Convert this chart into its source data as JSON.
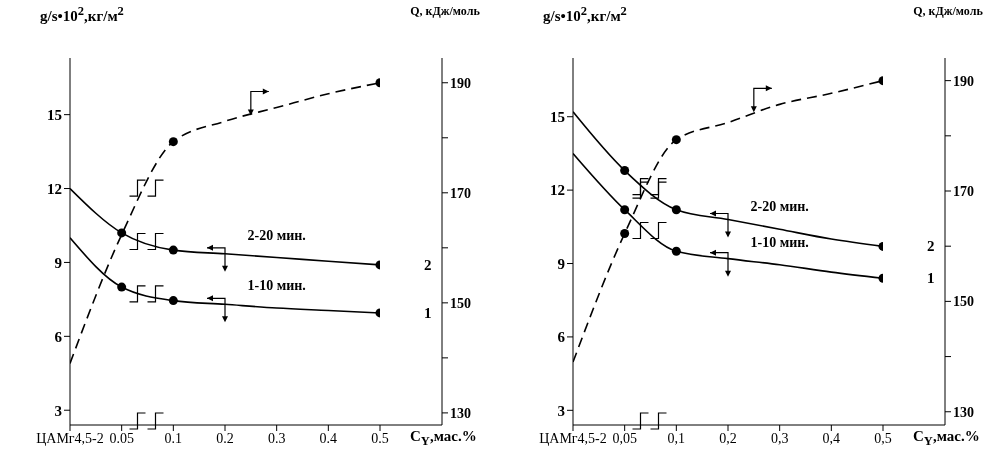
{
  "chart_data": [
    {
      "type": "line",
      "ylabel": "g/s•10$^{2}$,кг/м$^{2}$",
      "y2label": "Q, кДж/моль",
      "xlabel": "C$_{Y}$,мас.%",
      "categories": [
        "ЦАМг4,5-2",
        "0.05",
        "0.1",
        "0.2",
        "0.3",
        "0.4",
        "0.5"
      ],
      "ylim": [
        2.4,
        17.3
      ],
      "yticks": [
        3,
        6,
        9,
        12,
        15
      ],
      "y2lim": [
        127.8,
        194.5
      ],
      "y2ticks": [
        130,
        {
          "value": 140,
          "label": null
        },
        150,
        {
          "value": 160,
          "label": null
        },
        170,
        {
          "value": 180,
          "label": null
        },
        190
      ],
      "grid": false,
      "marker": "none",
      "series": [
        {
          "name": "2",
          "color": "#000000",
          "values": [
            12,
            10.2,
            9.5,
            9.35,
            9.2,
            9.05,
            8.9
          ],
          "line_style": "solid"
        },
        {
          "name": "1",
          "color": "#000000",
          "values": [
            10,
            8,
            7.45,
            7.3,
            7.15,
            7.05,
            6.95
          ],
          "line_style": "solid"
        },
        {
          "color": "#000000",
          "values": [
            139,
            162.4,
            179.3,
            183,
            185.5,
            188,
            190
          ],
          "line_style": "dashed",
          "axis": "y2"
        },
        {
          "type": "scatter",
          "color": "#000000",
          "marker": "circle",
          "x": [
            "0.05",
            "0.1",
            "0.5"
          ],
          "values": [
            10.2,
            9.5,
            8.9
          ]
        },
        {
          "type": "scatter",
          "color": "#000000",
          "marker": "circle",
          "x": [
            "0.05",
            "0.1",
            "0.5"
          ],
          "values": [
            8,
            7.45,
            6.95
          ]
        },
        {
          "type": "scatter",
          "color": "#000000",
          "marker": "circle",
          "axis": "y2",
          "x": [
            "0.1",
            "0.5"
          ],
          "values": [
            179.3,
            190
          ]
        }
      ],
      "annotations": [
        "2-20 мин.",
        "1-10 мин."
      ]
    },
    {
      "type": "line",
      "ylabel": "g/s•10$^{2}$,кг/м$^{2}$",
      "y2label": "Q, кДж/моль",
      "xlabel": "C$_{Y}$,мас.%",
      "categories": [
        "ЦАМг4,5-2",
        "0,05",
        "0,1",
        "0,2",
        "0,3",
        "0,4",
        "0,5"
      ],
      "ylim": [
        2.4,
        17.4
      ],
      "yticks": [
        3,
        6,
        9,
        12,
        15
      ],
      "y2lim": [
        127.6,
        194.1
      ],
      "y2ticks": [
        130,
        {
          "value": 140,
          "label": null
        },
        150,
        {
          "value": 160,
          "label": null
        },
        170,
        {
          "value": 180,
          "label": null
        },
        190
      ],
      "grid": false,
      "marker": "none",
      "series": [
        {
          "name": "2",
          "color": "#000000",
          "values": [
            15.2,
            12.8,
            11.2,
            10.8,
            10.4,
            10,
            9.7
          ],
          "line_style": "solid"
        },
        {
          "name": "1",
          "color": "#000000",
          "values": [
            13.5,
            11.2,
            9.5,
            9.2,
            8.95,
            8.65,
            8.4
          ],
          "line_style": "solid"
        },
        {
          "color": "#000000",
          "values": [
            139,
            162.3,
            179.3,
            182.4,
            185.7,
            187.7,
            190
          ],
          "line_style": "dashed",
          "axis": "y2"
        },
        {
          "type": "scatter",
          "color": "#000000",
          "marker": "circle",
          "x": [
            "0,05",
            "0,1",
            "0,5"
          ],
          "values": [
            12.8,
            11.2,
            9.7
          ]
        },
        {
          "type": "scatter",
          "color": "#000000",
          "marker": "circle",
          "x": [
            "0,05",
            "0,1",
            "0,5"
          ],
          "values": [
            11.2,
            9.5,
            8.4
          ]
        },
        {
          "type": "scatter",
          "color": "#000000",
          "marker": "circle",
          "axis": "y2",
          "x": [
            "0,05",
            "0,1",
            "0,5"
          ],
          "values": [
            162.3,
            179.3,
            190
          ]
        }
      ],
      "annotations": [
        "2-20 мин.",
        "1-10 мин."
      ]
    }
  ]
}
